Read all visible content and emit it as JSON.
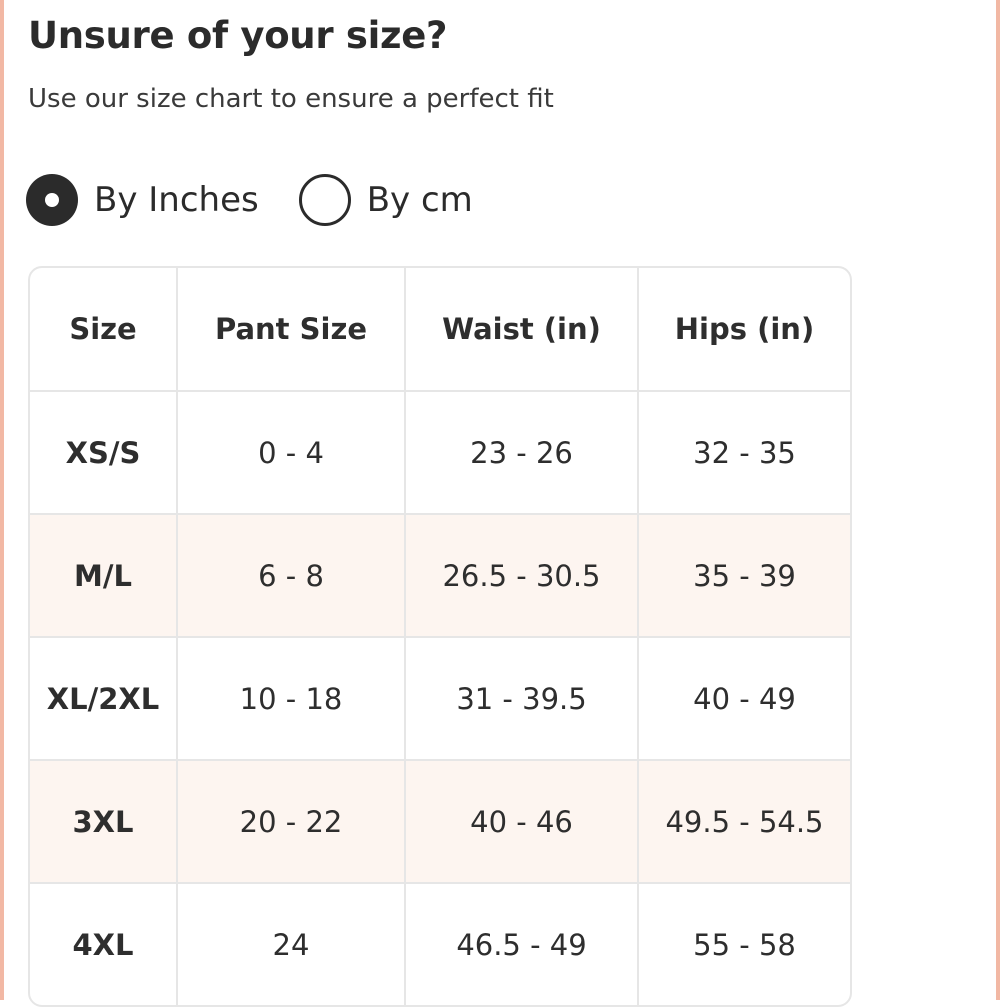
{
  "heading": "Unsure of your size?",
  "subheading": "Use our size chart to ensure a perfect fit",
  "unit_options": [
    {
      "label": "By Inches",
      "selected": true
    },
    {
      "label": "By cm",
      "selected": false
    }
  ],
  "table": {
    "headers": [
      "Size",
      "Pant Size",
      "Waist (in)",
      "Hips (in)"
    ],
    "rows": [
      [
        "XS/S",
        "0 - 4",
        "23 - 26",
        "32 - 35"
      ],
      [
        "M/L",
        "6 - 8",
        "26.5 - 30.5",
        "35 - 39"
      ],
      [
        "XL/2XL",
        "10 - 18",
        "31 - 39.5",
        "40 - 49"
      ],
      [
        "3XL",
        "20 - 22",
        "40 - 46",
        "49.5 - 54.5"
      ],
      [
        "4XL",
        "24",
        "46.5 - 49",
        "55 - 58"
      ]
    ]
  },
  "colors": {
    "accent_edge": "#f2b8a4",
    "stripe": "#fdf5f0",
    "text": "#2b2b2b"
  }
}
